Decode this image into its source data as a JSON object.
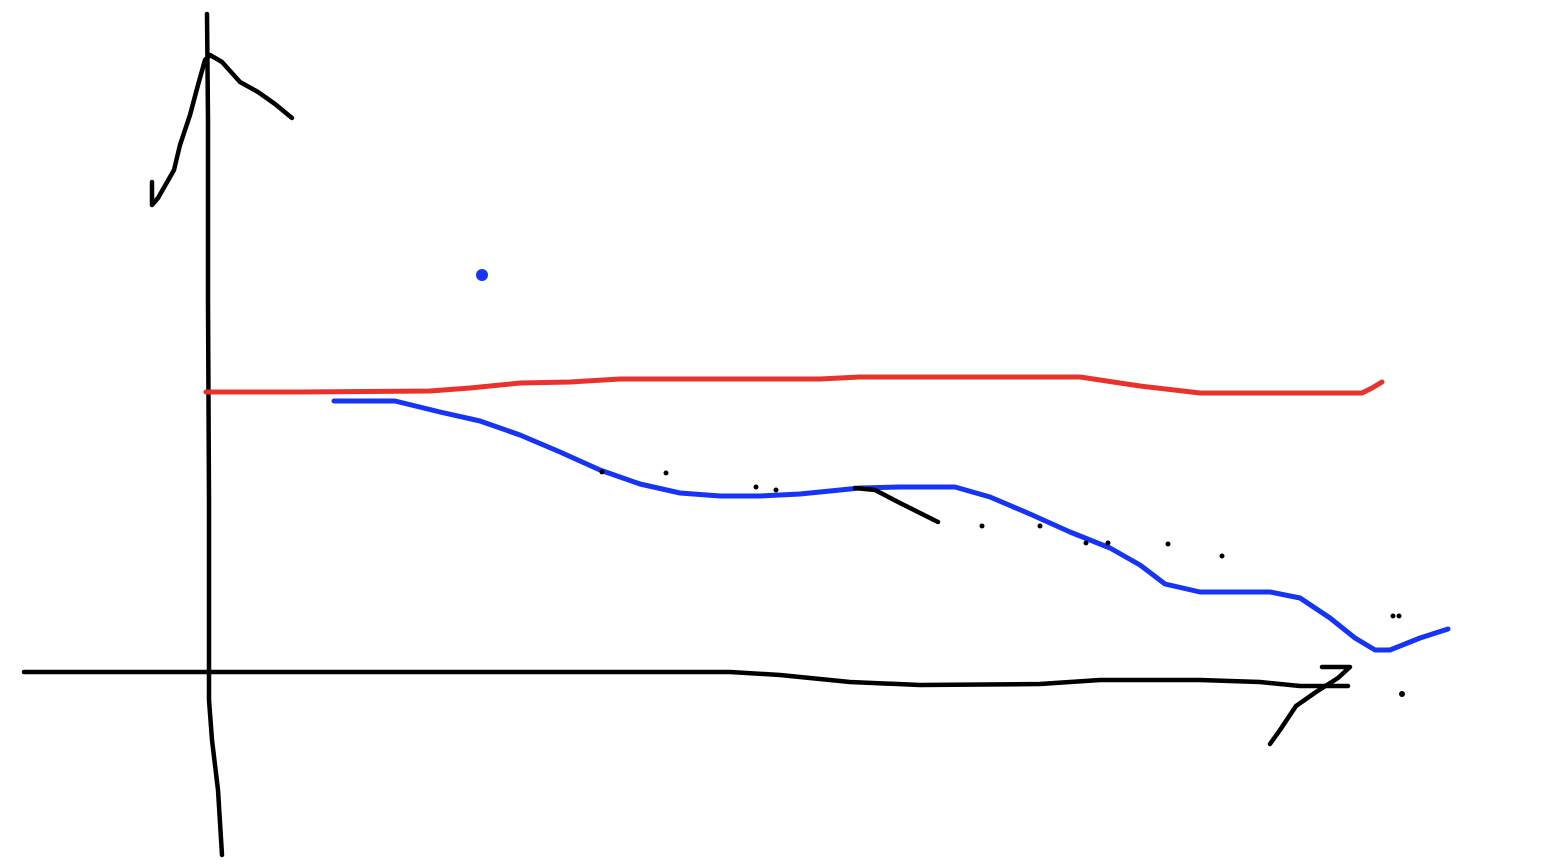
{
  "canvas": {
    "background": "#ffffff",
    "ink_colors": {
      "axes": "#000000",
      "red_curve": "#e8322b",
      "blue_curve": "#1634f5",
      "blue_dot": "#1634f5"
    }
  },
  "sketch": {
    "description_free": true,
    "strokes": [
      "y-axis",
      "y-axis-arrowhead",
      "x-axis",
      "x-axis-arrowhead",
      "red-curve",
      "blue-curve",
      "blue-dot",
      "stray-mark"
    ]
  }
}
